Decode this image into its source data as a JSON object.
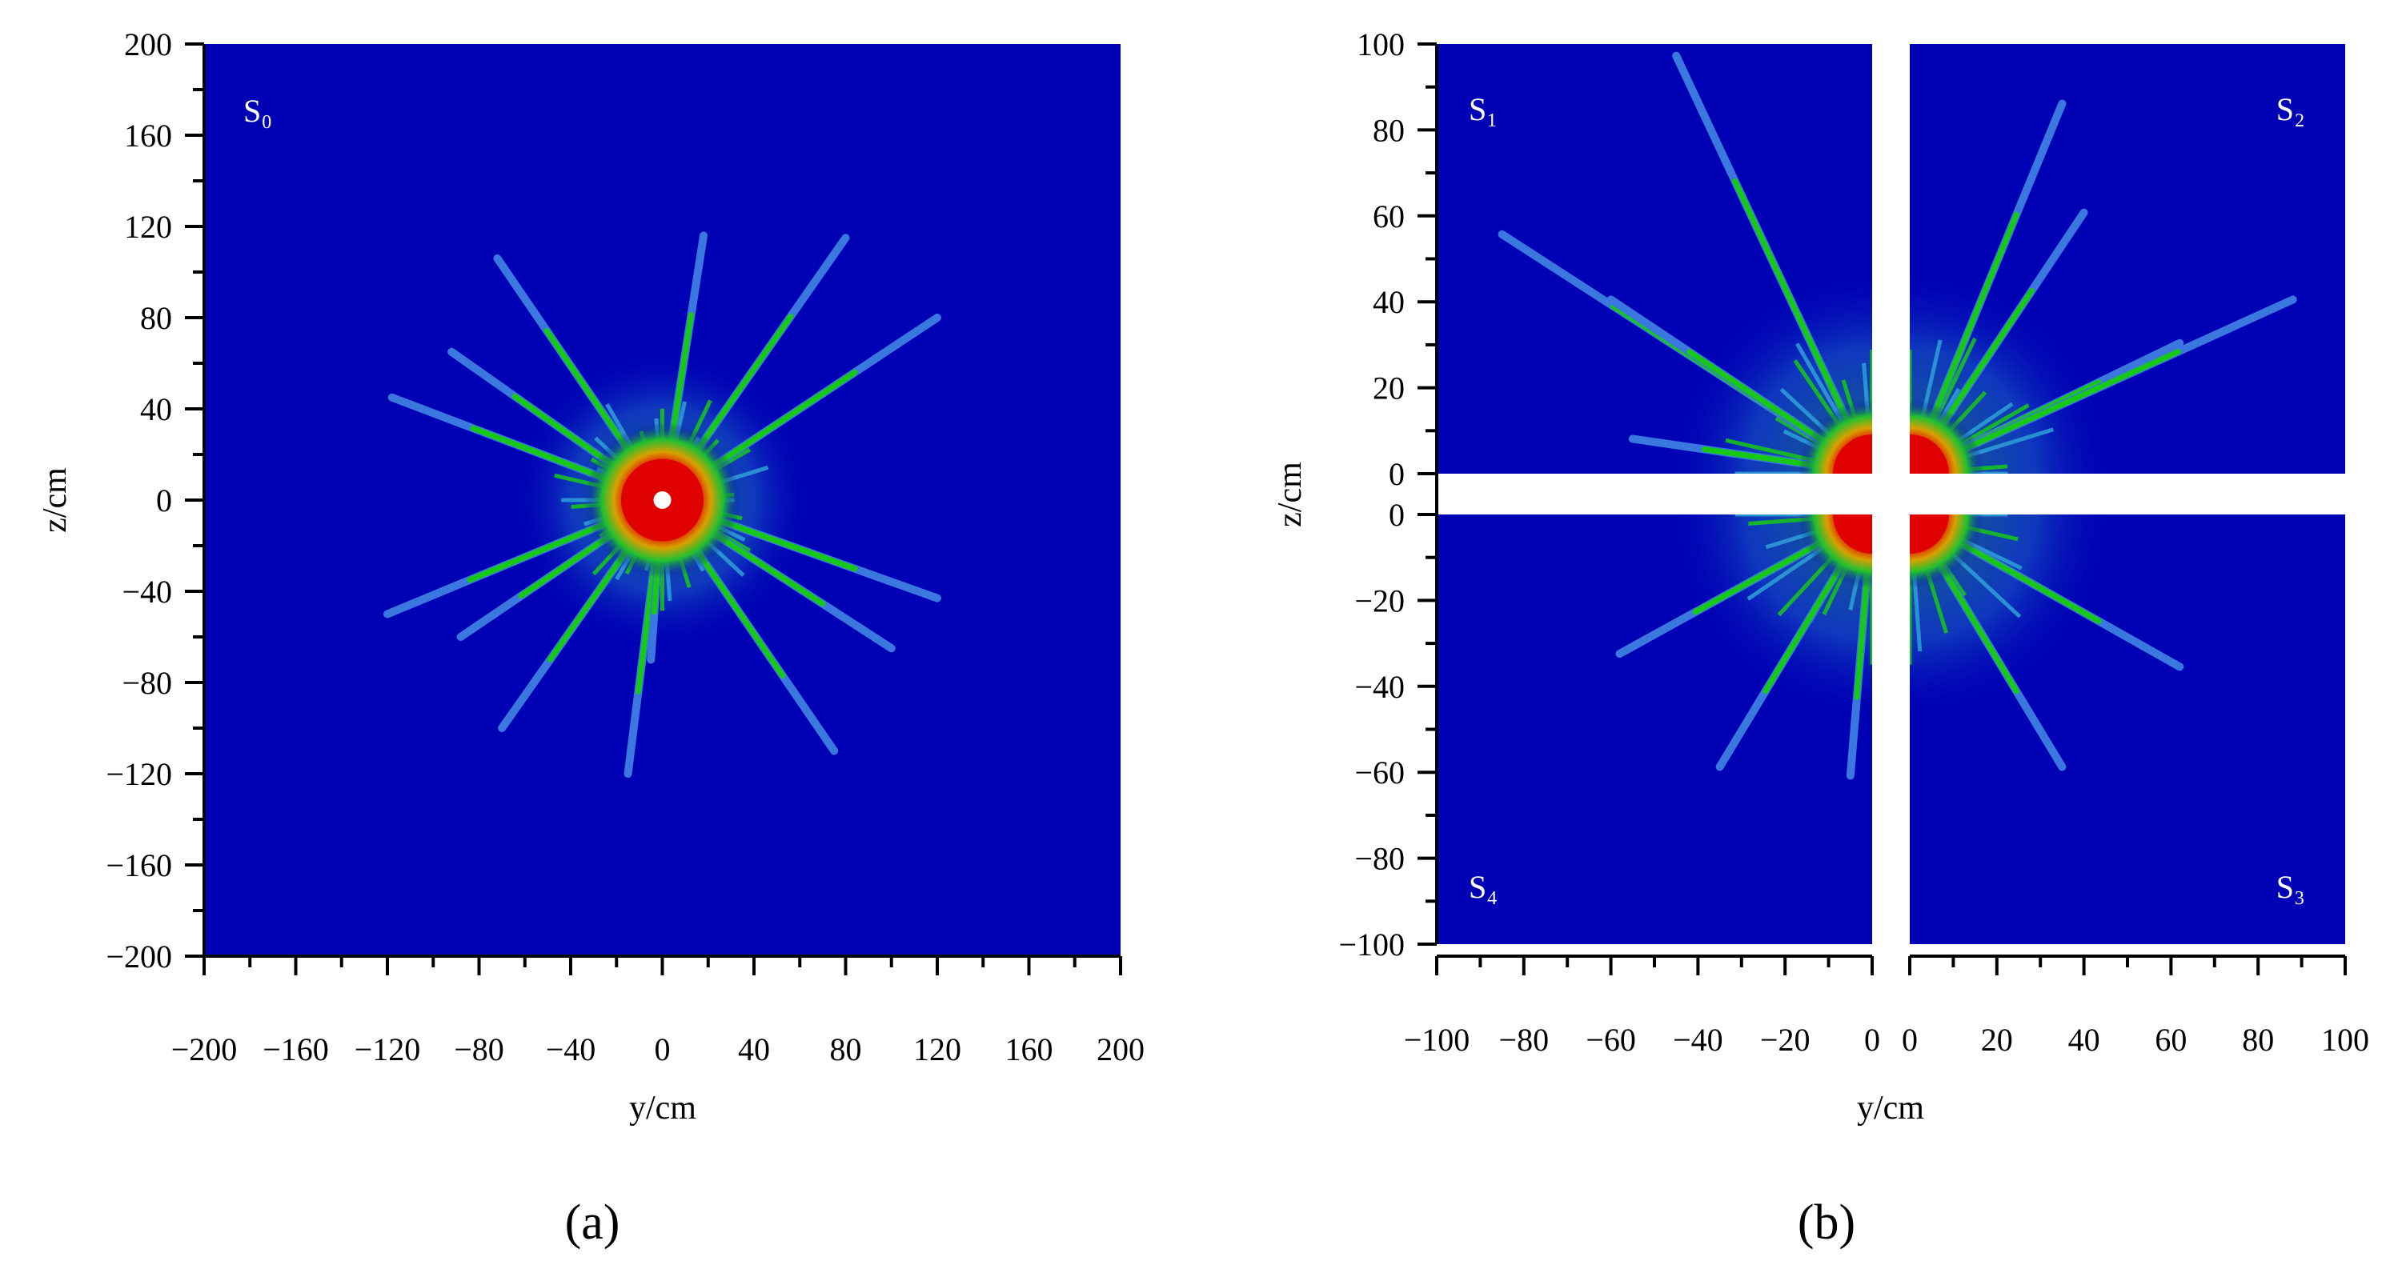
{
  "chart_data": [
    {
      "type": "heatmap",
      "panel_label": "(a)",
      "xlabel": "y/cm",
      "ylabel": "z/cm",
      "xlim": [
        -200,
        200
      ],
      "ylim": [
        -200,
        200
      ],
      "xticks": [
        "−200",
        "−160",
        "−120",
        "−80",
        "−40",
        "0",
        "40",
        "80",
        "120",
        "160",
        "200"
      ],
      "yticks": [
        "200",
        "160",
        "120",
        "80",
        "40",
        "0",
        "−40",
        "−80",
        "−120",
        "−160",
        "−200"
      ],
      "regions": [
        {
          "name": "S₀",
          "label": "S₀"
        }
      ],
      "background_color": "#0000b4",
      "core_color": "#e00000",
      "crack_colors": [
        "#18c818",
        "#2fa0d8",
        "#3a78e0"
      ],
      "center": [
        0,
        0
      ],
      "core_radius": 20,
      "fringe_radius": 42,
      "cracks": [
        {
          "to": [
            -72,
            106
          ]
        },
        {
          "to": [
            18,
            116
          ]
        },
        {
          "to": [
            80,
            115
          ]
        },
        {
          "to": [
            -92,
            65
          ]
        },
        {
          "to": [
            120,
            80
          ]
        },
        {
          "to": [
            -118,
            45
          ]
        },
        {
          "to": [
            -120,
            -50
          ]
        },
        {
          "to": [
            120,
            -43
          ]
        },
        {
          "to": [
            -88,
            -60
          ]
        },
        {
          "to": [
            -70,
            -100
          ]
        },
        {
          "to": [
            -15,
            -120
          ]
        },
        {
          "to": [
            75,
            -110
          ]
        },
        {
          "to": [
            100,
            -65
          ]
        },
        {
          "to": [
            -5,
            -70
          ]
        }
      ]
    },
    {
      "type": "heatmap",
      "panel_label": "(b)",
      "xlabel": "y/cm",
      "ylabel": "z/cm",
      "xlim": [
        -100,
        100
      ],
      "ylim": [
        -100,
        100
      ],
      "xticks_left": [
        "−100",
        "−80",
        "−60",
        "−40",
        "−20",
        "0"
      ],
      "xticks_right": [
        "0",
        "20",
        "40",
        "60",
        "80",
        "100"
      ],
      "yticks_top": [
        "100",
        "80",
        "60",
        "40",
        "20",
        "0"
      ],
      "yticks_bottom": [
        "0",
        "−20",
        "−40",
        "−60",
        "−80",
        "−100"
      ],
      "regions": [
        {
          "name": "S₁",
          "label": "S₁",
          "quadrant": "top-left"
        },
        {
          "name": "S₂",
          "label": "S₂",
          "quadrant": "top-right"
        },
        {
          "name": "S₃",
          "label": "S₃",
          "quadrant": "bottom-right"
        },
        {
          "name": "S₄",
          "label": "S₄",
          "quadrant": "bottom-left"
        }
      ],
      "background_color": "#0000b4",
      "core_color": "#e00000",
      "crack_colors": [
        "#18c818",
        "#2fa0d8",
        "#3a78e0"
      ],
      "center": [
        0,
        0
      ],
      "core_radius": 10,
      "fringe_radius": 30,
      "cracks": [
        {
          "to": [
            -45,
            96
          ]
        },
        {
          "to": [
            -85,
            55
          ]
        },
        {
          "to": [
            -60,
            40
          ]
        },
        {
          "to": [
            35,
            85
          ]
        },
        {
          "to": [
            40,
            60
          ]
        },
        {
          "to": [
            62,
            30
          ]
        },
        {
          "to": [
            88,
            40
          ]
        },
        {
          "to": [
            -55,
            8
          ]
        },
        {
          "to": [
            -58,
            -32
          ]
        },
        {
          "to": [
            -35,
            -58
          ]
        },
        {
          "to": [
            -5,
            -60
          ]
        },
        {
          "to": [
            35,
            -58
          ]
        },
        {
          "to": [
            62,
            -35
          ]
        }
      ]
    }
  ]
}
